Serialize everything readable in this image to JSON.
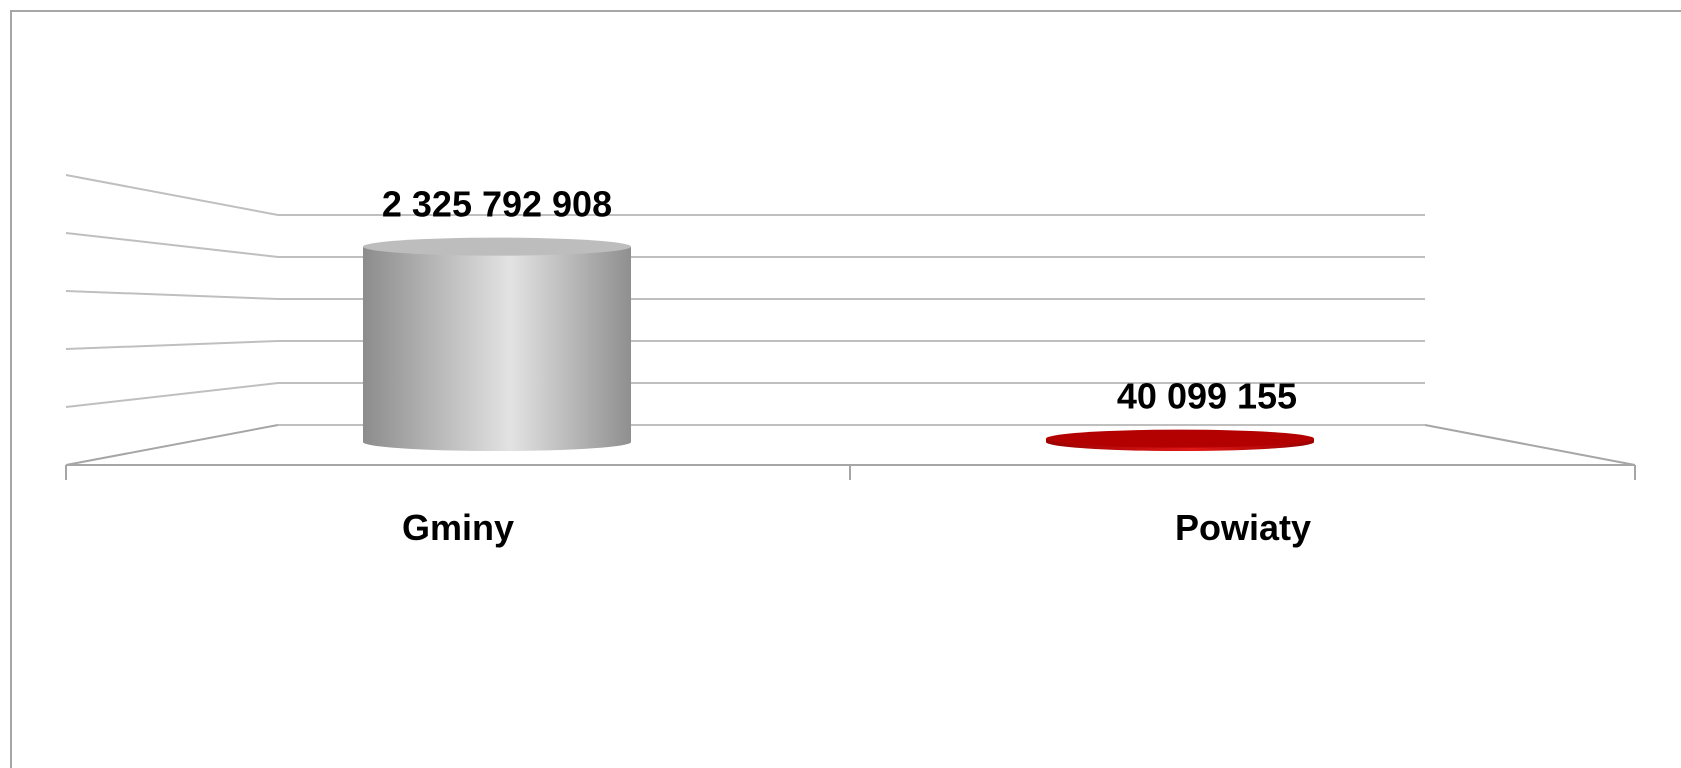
{
  "chart_data": {
    "type": "bar",
    "style": "3d-cylinder",
    "categories": [
      "Gminy",
      "Powiaty"
    ],
    "values": [
      2325792908,
      40099155
    ],
    "value_labels": [
      "2 325 792 908",
      "40 099 155"
    ],
    "bar_colors": [
      "#b3b3b3",
      "#c00000"
    ],
    "ylim": [
      0,
      2500000000
    ],
    "grid": true,
    "legend": "none"
  }
}
